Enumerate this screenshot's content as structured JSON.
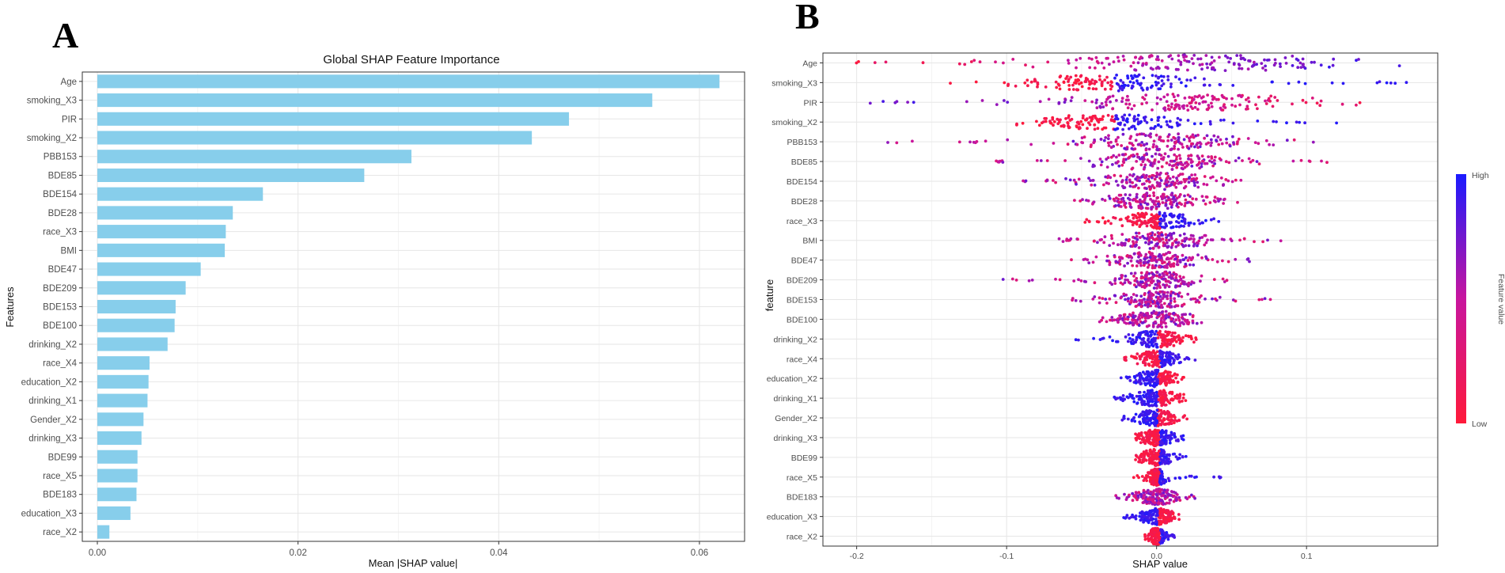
{
  "panels": {
    "a_letter": "A",
    "b_letter": "B"
  },
  "legend": {
    "high": "High",
    "low": "Low",
    "title": "Feature value",
    "color_high": "#1a1aff",
    "color_mid": "#c8159e",
    "color_low": "#ff1a3a"
  },
  "chart_data": [
    {
      "type": "bar",
      "orientation": "horizontal",
      "title": "Global SHAP Feature Importance",
      "xlabel": "Mean |SHAP value|",
      "ylabel": "Features",
      "xlim": [
        -0.0015,
        0.0645
      ],
      "xticks": [
        0.0,
        0.02,
        0.04,
        0.06
      ],
      "xtick_labels": [
        "0.00",
        "0.02",
        "0.04",
        "0.06"
      ],
      "bar_color": "#87ceeb",
      "categories": [
        "Age",
        "smoking_X3",
        "PIR",
        "smoking_X2",
        "PBB153",
        "BDE85",
        "BDE154",
        "BDE28",
        "race_X3",
        "BMI",
        "BDE47",
        "BDE209",
        "BDE153",
        "BDE100",
        "drinking_X2",
        "race_X4",
        "education_X2",
        "drinking_X1",
        "Gender_X2",
        "drinking_X3",
        "BDE99",
        "race_X5",
        "BDE183",
        "education_X3",
        "race_X2"
      ],
      "values": [
        0.062,
        0.0553,
        0.047,
        0.0433,
        0.0313,
        0.0266,
        0.0165,
        0.0135,
        0.0128,
        0.0127,
        0.0103,
        0.0088,
        0.0078,
        0.0077,
        0.007,
        0.0052,
        0.0051,
        0.005,
        0.0046,
        0.0044,
        0.004,
        0.004,
        0.0039,
        0.0033,
        0.0012
      ]
    },
    {
      "type": "scatter",
      "subtype": "beeswarm",
      "xlabel": "SHAP value",
      "ylabel": "feature",
      "xlim": [
        -0.2225,
        0.1875
      ],
      "xticks": [
        -0.2,
        -0.1,
        0.0,
        0.1
      ],
      "xtick_labels": [
        "-0.2",
        "-0.1",
        "0.0",
        "0.1"
      ],
      "color_scale": "Feature value (Low to High)",
      "categories": [
        "Age",
        "smoking_X3",
        "PIR",
        "smoking_X2",
        "PBB153",
        "BDE85",
        "BDE154",
        "BDE28",
        "race_X3",
        "BMI",
        "BDE47",
        "BDE209",
        "BDE153",
        "BDE100",
        "drinking_X2",
        "race_X4",
        "education_X2",
        "drinking_X1",
        "Gender_X2",
        "drinking_X3",
        "BDE99",
        "race_X5",
        "BDE183",
        "education_X3",
        "race_X2"
      ],
      "series": [
        {
          "name": "Age",
          "range": [
            -0.205,
            0.165
          ],
          "center": 0.03,
          "core_halfwidth": 0.09,
          "mode": "gradient_pos"
        },
        {
          "name": "smoking_X3",
          "range": [
            -0.14,
            0.17
          ],
          "center": -0.03,
          "core_halfwidth": 0.05,
          "mode": "split_pos"
        },
        {
          "name": "PIR",
          "range": [
            -0.2,
            0.14
          ],
          "center": 0.02,
          "core_halfwidth": 0.07,
          "mode": "gradient_neg"
        },
        {
          "name": "smoking_X2",
          "range": [
            -0.1,
            0.13
          ],
          "center": -0.03,
          "core_halfwidth": 0.04,
          "mode": "split_pos"
        },
        {
          "name": "PBB153",
          "range": [
            -0.18,
            0.11
          ],
          "center": 0.0,
          "core_halfwidth": 0.05,
          "mode": "mixed"
        },
        {
          "name": "BDE85",
          "range": [
            -0.11,
            0.115
          ],
          "center": 0.0,
          "core_halfwidth": 0.04,
          "mode": "mixed"
        },
        {
          "name": "BDE154",
          "range": [
            -0.09,
            0.065
          ],
          "center": 0.0,
          "core_halfwidth": 0.035,
          "mode": "mixed"
        },
        {
          "name": "BDE28",
          "range": [
            -0.06,
            0.06
          ],
          "center": 0.0,
          "core_halfwidth": 0.028,
          "mode": "mixed"
        },
        {
          "name": "race_X3",
          "range": [
            -0.05,
            0.045
          ],
          "center": 0.0,
          "core_halfwidth": 0.022,
          "mode": "split_pos"
        },
        {
          "name": "BMI",
          "range": [
            -0.065,
            0.088
          ],
          "center": 0.0,
          "core_halfwidth": 0.03,
          "mode": "mixed"
        },
        {
          "name": "BDE47",
          "range": [
            -0.06,
            0.062
          ],
          "center": 0.0,
          "core_halfwidth": 0.028,
          "mode": "mixed"
        },
        {
          "name": "BDE209",
          "range": [
            -0.104,
            0.05
          ],
          "center": 0.0,
          "core_halfwidth": 0.025,
          "mode": "mixed"
        },
        {
          "name": "BDE153",
          "range": [
            -0.058,
            0.084
          ],
          "center": 0.0,
          "core_halfwidth": 0.025,
          "mode": "mixed"
        },
        {
          "name": "BDE100",
          "range": [
            -0.04,
            0.03
          ],
          "center": 0.0,
          "core_halfwidth": 0.022,
          "mode": "mixed"
        },
        {
          "name": "drinking_X2",
          "range": [
            -0.054,
            0.028
          ],
          "center": 0.0,
          "core_halfwidth": 0.016,
          "mode": "split_neg"
        },
        {
          "name": "race_X4",
          "range": [
            -0.022,
            0.026
          ],
          "center": 0.0,
          "core_halfwidth": 0.012,
          "mode": "split_pos"
        },
        {
          "name": "education_X2",
          "range": [
            -0.024,
            0.02
          ],
          "center": 0.0,
          "core_halfwidth": 0.012,
          "mode": "split_neg"
        },
        {
          "name": "drinking_X1",
          "range": [
            -0.03,
            0.022
          ],
          "center": 0.0,
          "core_halfwidth": 0.013,
          "mode": "split_neg"
        },
        {
          "name": "Gender_X2",
          "range": [
            -0.024,
            0.022
          ],
          "center": 0.0,
          "core_halfwidth": 0.012,
          "mode": "split_neg"
        },
        {
          "name": "drinking_X3",
          "range": [
            -0.014,
            0.018
          ],
          "center": 0.0,
          "core_halfwidth": 0.01,
          "mode": "split_pos"
        },
        {
          "name": "BDE99",
          "range": [
            -0.014,
            0.02
          ],
          "center": 0.0,
          "core_halfwidth": 0.01,
          "mode": "split_pos"
        },
        {
          "name": "race_X5",
          "range": [
            -0.016,
            0.044
          ],
          "center": 0.0,
          "core_halfwidth": 0.006,
          "mode": "split_pos"
        },
        {
          "name": "BDE183",
          "range": [
            -0.028,
            0.028
          ],
          "center": 0.0,
          "core_halfwidth": 0.012,
          "mode": "mixed"
        },
        {
          "name": "education_X3",
          "range": [
            -0.022,
            0.018
          ],
          "center": 0.0,
          "core_halfwidth": 0.01,
          "mode": "split_neg"
        },
        {
          "name": "race_X2",
          "range": [
            -0.008,
            0.012
          ],
          "center": 0.0,
          "core_halfwidth": 0.005,
          "mode": "split_pos"
        }
      ]
    }
  ]
}
